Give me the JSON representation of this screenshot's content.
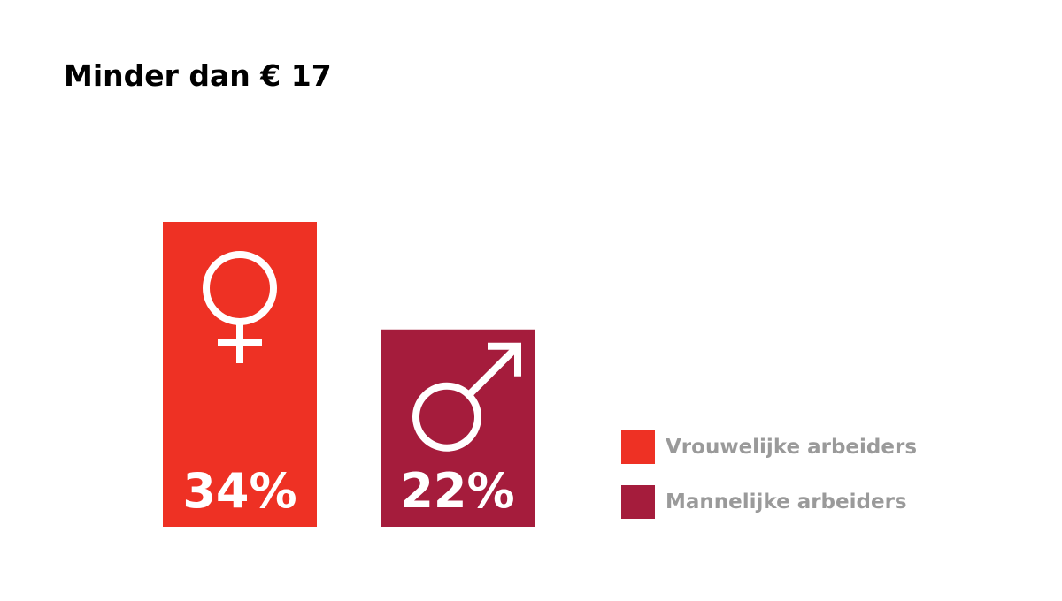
{
  "chart_data": {
    "type": "bar",
    "title": "Minder dan € 17",
    "categories": [
      "Vrouwelijke arbeiders",
      "Mannelijke arbeiders"
    ],
    "values": [
      34,
      22
    ],
    "value_labels": [
      "34%",
      "22%"
    ],
    "icons": [
      "female-symbol-icon",
      "male-symbol-icon"
    ],
    "colors": [
      "#ee3124",
      "#a51c3c"
    ],
    "ylim": [
      0,
      34
    ],
    "grid": false,
    "legend_position": "bottom-right",
    "legend": [
      {
        "label": "Vrouwelijke arbeiders",
        "color": "#ee3124"
      },
      {
        "label": "Mannelijke arbeiders",
        "color": "#a51c3c"
      }
    ]
  }
}
